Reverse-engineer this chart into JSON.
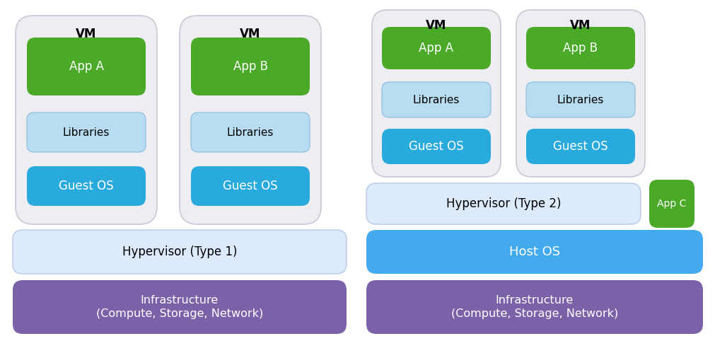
{
  "bg_color": "#ffffff",
  "green_color": "#4aaa28",
  "light_blue_color": "#b8ddf0",
  "blue_color": "#29aadd",
  "hypervisor1_color": "#ddeafc",
  "hypervisor2_color": "#ddeafc",
  "host_os_color": "#44aaee",
  "infra_color": "#7b62a8",
  "vm_box_color": "#ededf2",
  "vm_box_border": "#c8c8d8",
  "vm_label": "VM",
  "app_a_label": "App A",
  "app_b_label": "App B",
  "app_c_label": "App C",
  "libraries_label": "Libraries",
  "guest_os_label": "Guest OS",
  "hypervisor1_label": "Hypervisor (Type 1)",
  "hypervisor2_label": "Hypervisor (Type 2)",
  "host_os_label": "Host OS",
  "infra_label": "Infrastructure\n(Compute, Storage, Network)"
}
